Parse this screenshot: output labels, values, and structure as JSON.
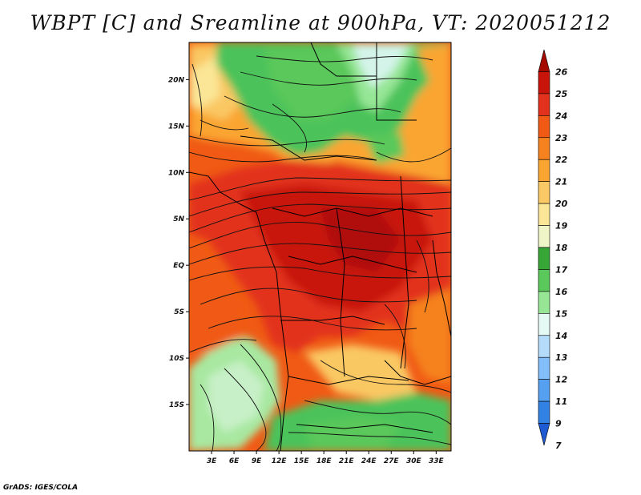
{
  "title": "WBPT [C] and Sreamline at 900hPa, VT: 2020051212",
  "credit": "GrADS: IGES/COLA",
  "map": {
    "lon_range": [
      0,
      35
    ],
    "lat_range": [
      -20,
      24
    ],
    "lon_ticks": [
      "3E",
      "6E",
      "9E",
      "12E",
      "15E",
      "18E",
      "21E",
      "24E",
      "27E",
      "30E",
      "33E"
    ],
    "lat_ticks": [
      "20N",
      "15N",
      "10N",
      "5N",
      "EQ",
      "5S",
      "10S",
      "15S"
    ],
    "field_regions": [
      {
        "name": "sahel-north-cool",
        "level": "16-18",
        "color": "#4cc35a"
      },
      {
        "name": "ne-cool-patch",
        "level": "14-16",
        "color": "#c8f0d8"
      },
      {
        "name": "central-warm-core",
        "level": "24-25",
        "color": "#d2260a"
      },
      {
        "name": "southern-cool",
        "level": "15-17",
        "color": "#a8e8a0"
      }
    ]
  },
  "colorbar": {
    "levels": [
      "26",
      "25",
      "24",
      "23",
      "22",
      "21",
      "20",
      "19",
      "18",
      "17",
      "16",
      "15",
      "14",
      "13",
      "12",
      "11",
      "9",
      "7"
    ],
    "colors": [
      "#a50a00",
      "#c8140a",
      "#e2321e",
      "#f05a14",
      "#f5821e",
      "#faa532",
      "#fac864",
      "#fae696",
      "#f0f5c8",
      "#37a637",
      "#5ac85a",
      "#96e696",
      "#e6faf5",
      "#b4dcfa",
      "#82befa",
      "#55a0f0",
      "#3282e6",
      "#1e5ad2"
    ]
  }
}
